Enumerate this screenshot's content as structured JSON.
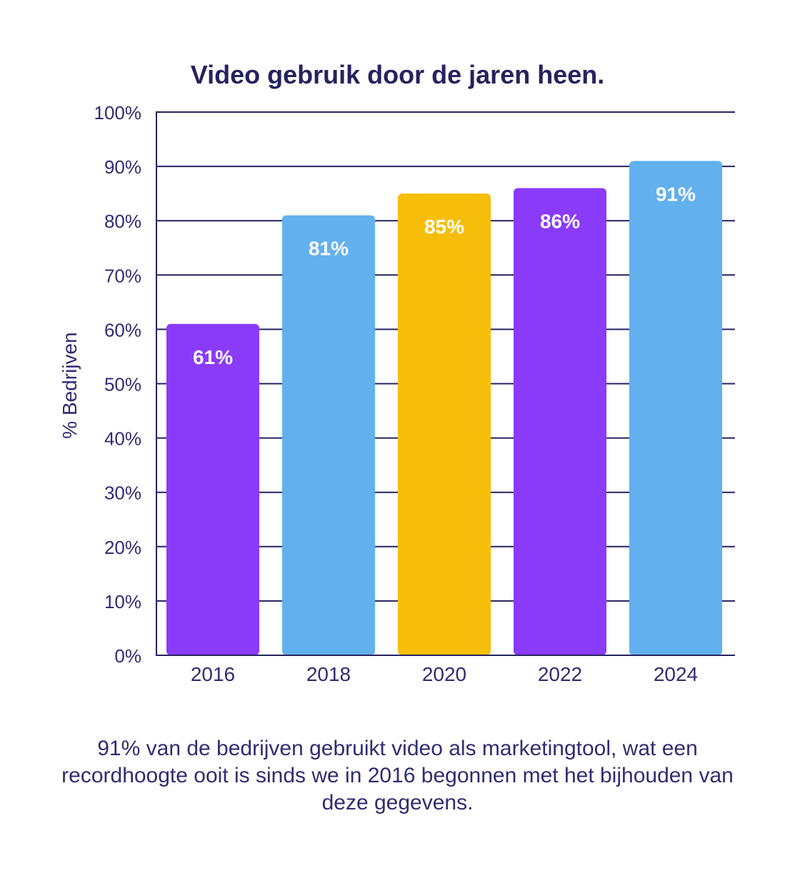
{
  "chart_data": {
    "type": "bar",
    "title": "Video gebruik door de jaren heen.",
    "ylabel": "% Bedrijven",
    "xlabel": "",
    "categories": [
      "2016",
      "2018",
      "2020",
      "2022",
      "2024"
    ],
    "values": [
      61,
      81,
      85,
      86,
      91
    ],
    "value_labels": [
      "61%",
      "81%",
      "85%",
      "86%",
      "91%"
    ],
    "bar_colors": [
      "#8A3BFA",
      "#62B0EE",
      "#F6BE0B",
      "#8A3BFA",
      "#62B0EE"
    ],
    "value_label_color": "#ffffff",
    "yticks": [
      "0%",
      "10%",
      "20%",
      "30%",
      "40%",
      "50%",
      "60%",
      "70%",
      "80%",
      "90%",
      "100%"
    ],
    "ylim": [
      0,
      100
    ],
    "grid": true,
    "grid_color": "#25235e"
  },
  "footnote": "91% van de bedrijven gebruikt video als marketingtool, wat een recordhoogte ooit is sinds we in 2016 begonnen met het bijhouden van deze gegevens."
}
